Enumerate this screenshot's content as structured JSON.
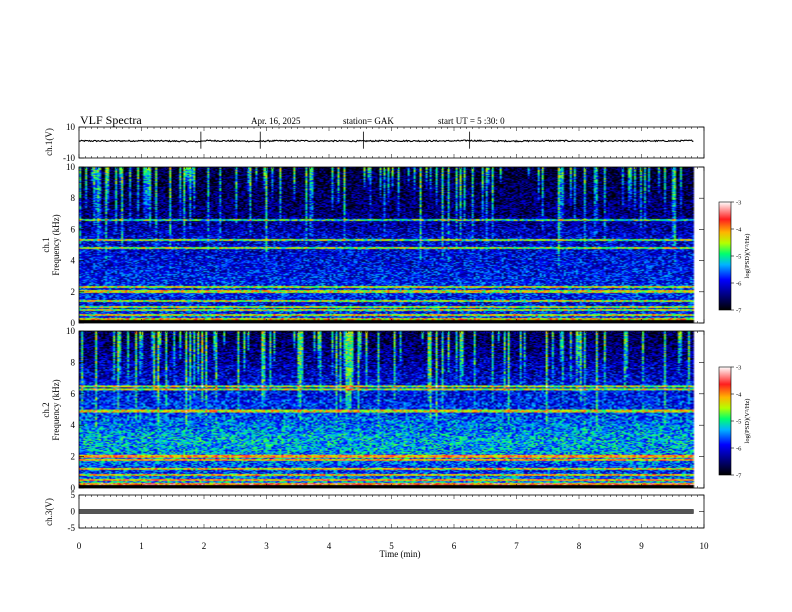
{
  "header": {
    "title": "VLF Spectra",
    "date": "Apr. 16, 2025",
    "station": "station= GAK",
    "start": "start UT =   5 :30: 0"
  },
  "chart_data": [
    {
      "type": "line",
      "name": "ch1-waveform",
      "ylabel": "ch.1(V)",
      "ylim": [
        -10,
        10
      ],
      "yticks": [
        "10",
        "-10"
      ],
      "baseline_v": 1.0,
      "x": [
        0,
        0.5,
        1,
        1.5,
        1.9,
        2,
        2.5,
        2.9,
        3,
        3.5,
        4,
        4.5,
        5,
        5.5,
        6,
        6.25,
        6.5,
        7,
        7.5,
        8,
        8.5,
        9,
        9.5,
        9.8
      ],
      "y": [
        1.0,
        1.0,
        1.1,
        0.9,
        0.6,
        1.2,
        1.0,
        0.7,
        1.0,
        1.1,
        1.0,
        0.9,
        1.1,
        1.0,
        1.0,
        1.3,
        1.0,
        0.9,
        1.1,
        1.0,
        0.9,
        1.0,
        1.0,
        1.2
      ],
      "spikes": [
        1.95,
        2.9,
        4.55,
        6.25
      ]
    },
    {
      "type": "heatmap",
      "name": "ch1-spectrogram",
      "ylabel_top": "ch.1",
      "ylabel": "Frequency (kHz)",
      "ylim": [
        0,
        10
      ],
      "yticks": [
        "0",
        "2",
        "4",
        "6",
        "8",
        "10"
      ],
      "colorbar": {
        "label": "log(PSD)(V²/Hz)",
        "range": [
          -7,
          -3
        ],
        "ticks": [
          "-3",
          "-4",
          "-5",
          "-6",
          "-7"
        ]
      },
      "bands_khz": [
        0.2,
        0.5,
        0.8,
        1.0,
        1.4,
        2.0,
        2.3,
        4.8,
        5.3,
        6.6
      ],
      "intensity_profile": [
        {
          "f": 0,
          "v": -5.5
        },
        {
          "f": 1,
          "v": -6.0
        },
        {
          "f": 2,
          "v": -5.8
        },
        {
          "f": 4,
          "v": -6.0
        },
        {
          "f": 5.5,
          "v": -6.1
        },
        {
          "f": 7,
          "v": -6.5
        },
        {
          "f": 10,
          "v": -6.8
        }
      ]
    },
    {
      "type": "heatmap",
      "name": "ch2-spectrogram",
      "ylabel_top": "ch.2",
      "ylabel": "Frequency (kHz)",
      "ylim": [
        0,
        10
      ],
      "yticks": [
        "0",
        "2",
        "4",
        "6",
        "8",
        "10"
      ],
      "colorbar": {
        "label": "log(PSD)(V²/Hz)",
        "range": [
          -7,
          -3
        ],
        "ticks": [
          "-3",
          "-4",
          "-5",
          "-6",
          "-7"
        ]
      },
      "bands_khz": [
        0.2,
        0.5,
        0.8,
        1.2,
        1.8,
        2.0,
        4.9,
        6.3,
        6.5
      ],
      "intensity_profile": [
        {
          "f": 0,
          "v": -5.0
        },
        {
          "f": 1,
          "v": -5.8
        },
        {
          "f": 2,
          "v": -5.4
        },
        {
          "f": 3,
          "v": -5.3
        },
        {
          "f": 4,
          "v": -5.5
        },
        {
          "f": 5,
          "v": -5.8
        },
        {
          "f": 6.5,
          "v": -6.0
        },
        {
          "f": 10,
          "v": -6.7
        }
      ]
    },
    {
      "type": "line",
      "name": "ch3-waveform",
      "ylabel": "ch.3(V)",
      "ylim": [
        -5,
        5
      ],
      "yticks": [
        "5",
        "0",
        "-5"
      ],
      "baseline_v": 0.0
    }
  ],
  "xaxis": {
    "label": "Time (min)",
    "range": [
      0,
      10
    ],
    "ticks": [
      "0",
      "1",
      "2",
      "3",
      "4",
      "5",
      "6",
      "7",
      "8",
      "9",
      "10"
    ],
    "data_end": 9.83
  },
  "colors": {
    "ink": "#000000",
    "colormap": [
      "#000050",
      "#0000c8",
      "#0050ff",
      "#00c8ff",
      "#00ff80",
      "#c8ff00",
      "#ffc800",
      "#ff2000",
      "#ffffff"
    ]
  }
}
